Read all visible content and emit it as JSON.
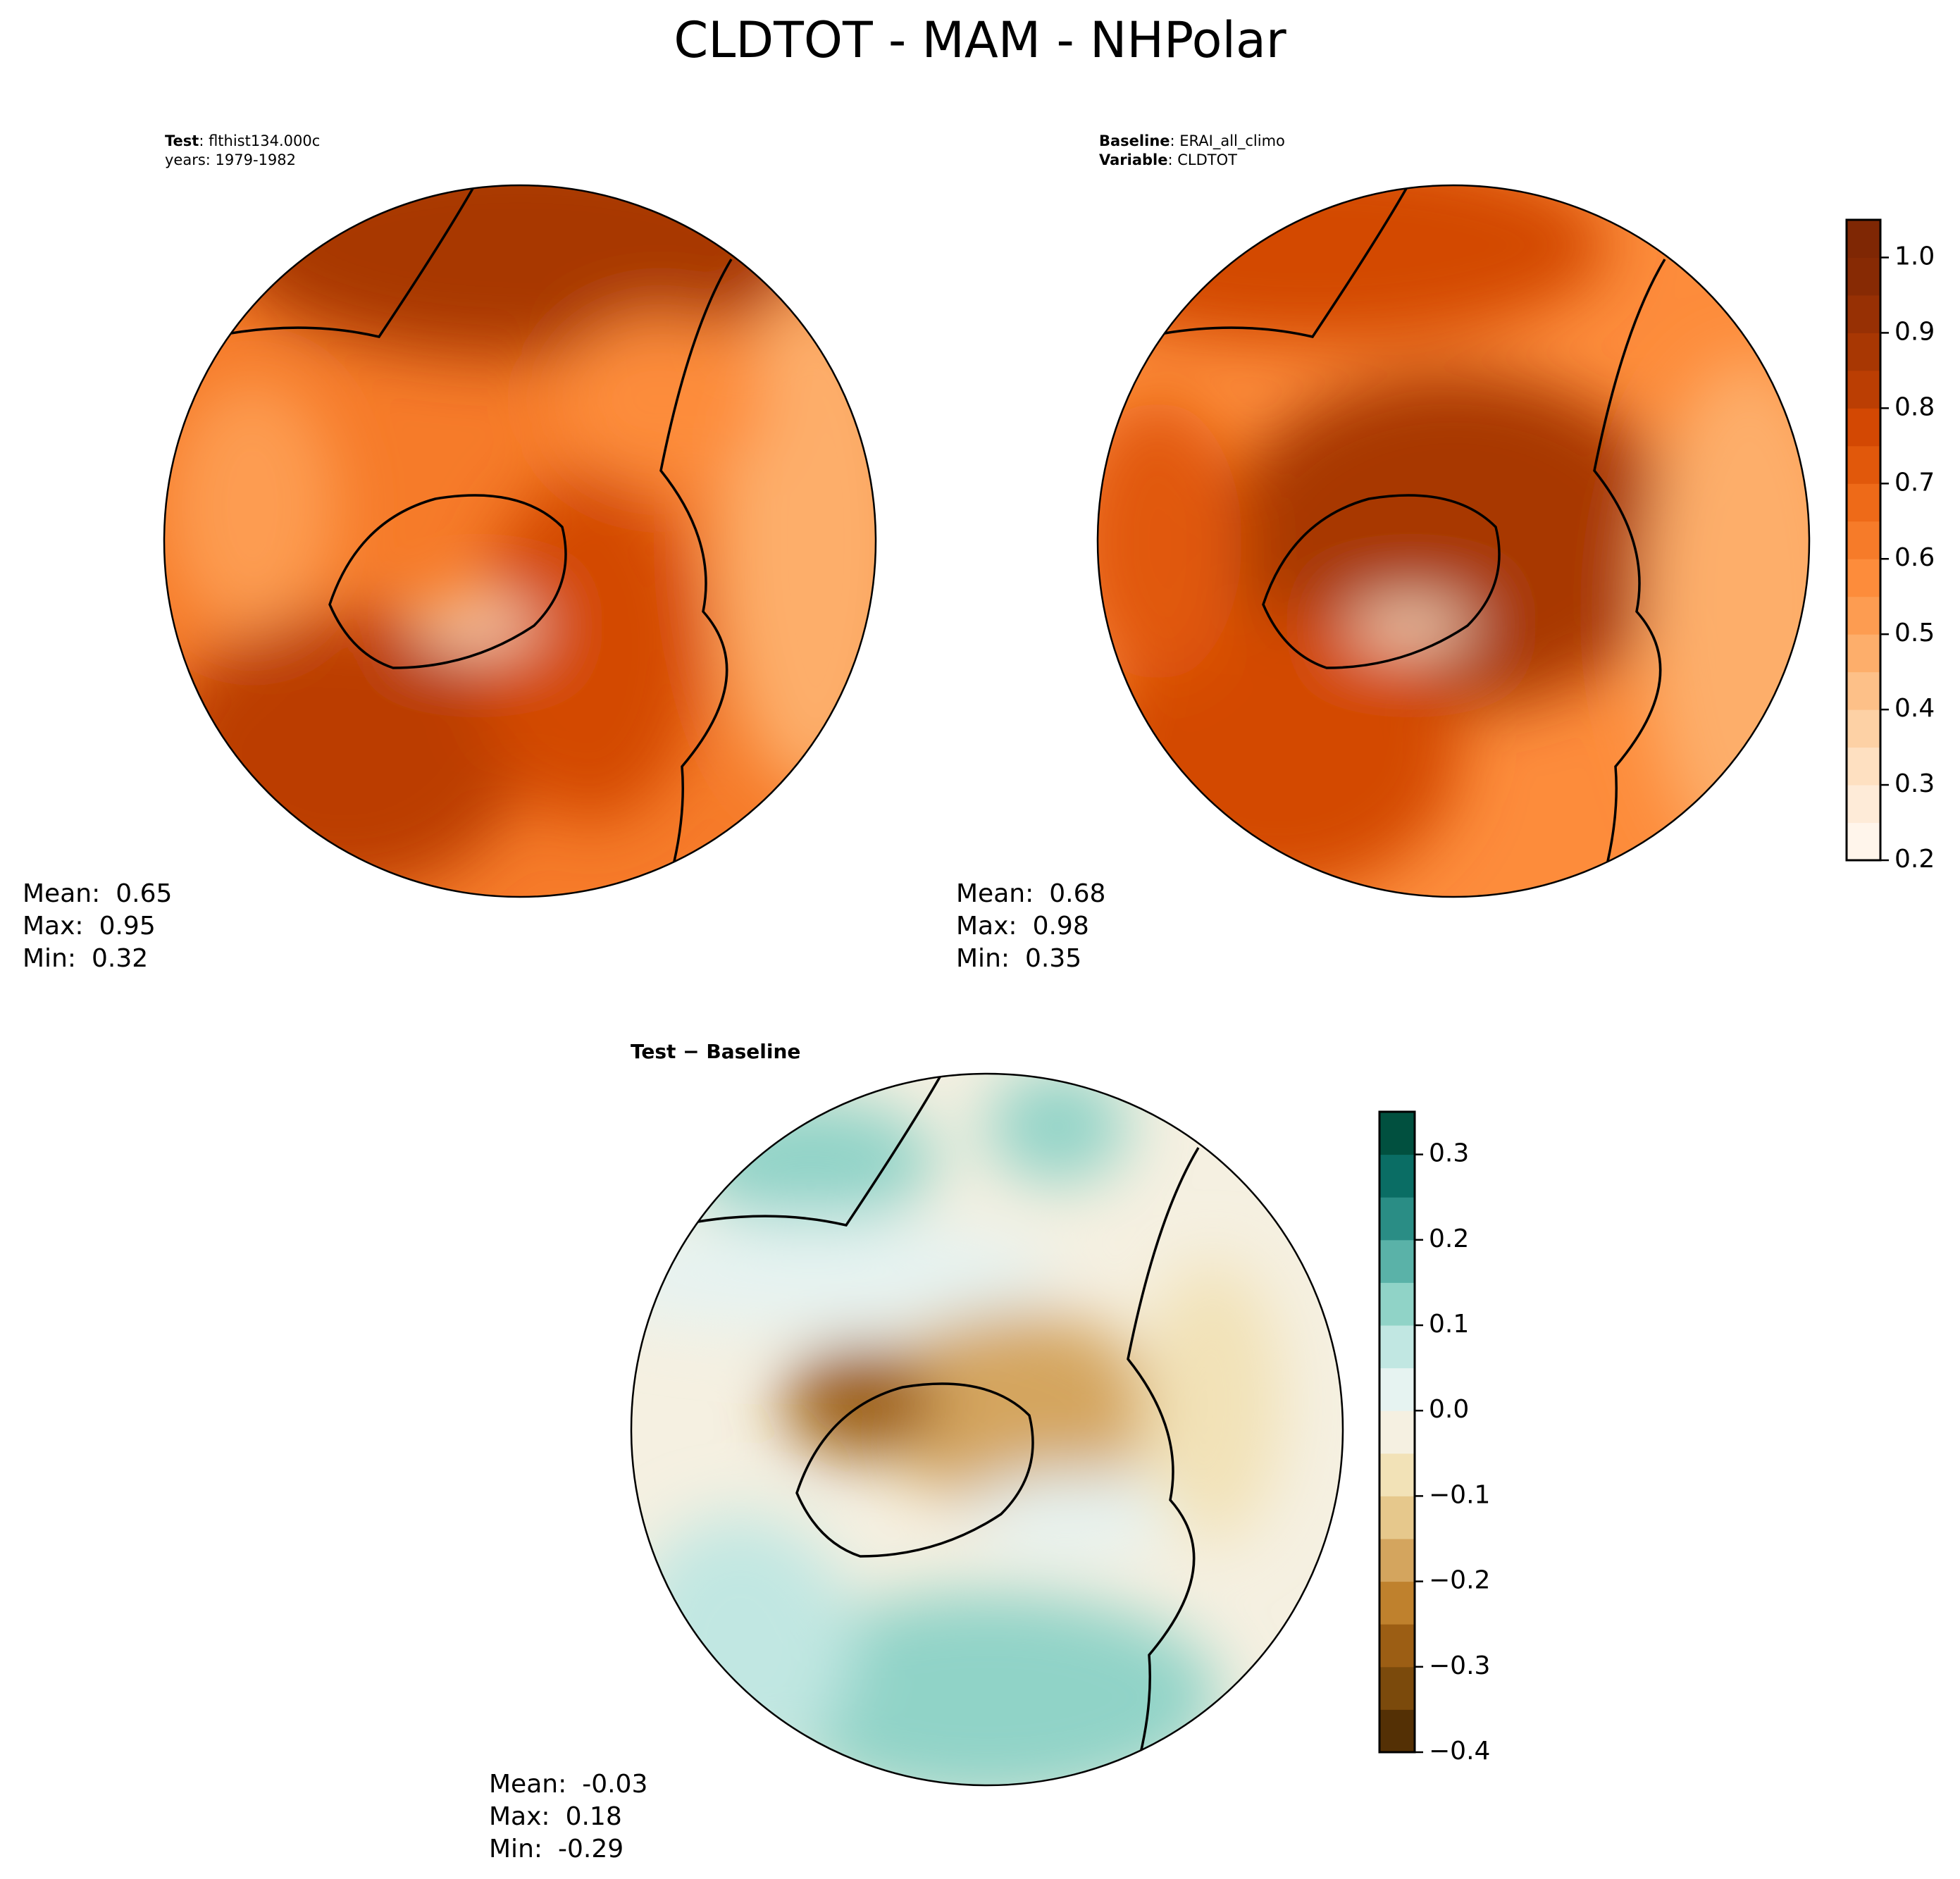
{
  "title": "CLDTOT - MAM - NHPolar",
  "panels": [
    {
      "header": [
        {
          "label": "Test",
          "text": ": flthist134.000c"
        },
        {
          "text": "years: 1979-1982"
        }
      ],
      "stats": [
        {
          "label": "Mean:",
          "value": 0.65
        },
        {
          "label": "Max:",
          "value": 0.95
        },
        {
          "label": "Min:",
          "value": 0.32
        }
      ]
    },
    {
      "header": [
        {
          "label": "Baseline",
          "text": ": ERAI_all_climo"
        },
        {
          "label": "Variable",
          "text": ": CLDTOT"
        }
      ],
      "stats": [
        {
          "label": "Mean:",
          "value": 0.68
        },
        {
          "label": "Max:",
          "value": 0.98
        },
        {
          "label": "Min:",
          "value": 0.35
        }
      ],
      "colorbar": {
        "lim": [
          0.2,
          1.05
        ],
        "ticks": [
          0.2,
          0.3,
          0.4,
          0.5,
          0.6,
          0.7,
          0.8,
          0.9,
          {
            "value": 1,
            "label": "1.0"
          }
        ],
        "colors": [
          "#fff5eb",
          "#feebd8",
          "#fee0c1",
          "#fdd1a5",
          "#fdc088",
          "#fdae6b",
          "#fd9c51",
          "#fd8c3b",
          "#f67b29",
          "#ee6a18",
          "#e1580b",
          "#d34803",
          "#bb3e03",
          "#a83703",
          "#973004",
          "#872a04",
          "#7f2704"
        ]
      }
    },
    {
      "title": "Test − Baseline",
      "stats": [
        {
          "label": "Mean:",
          "value": -0.03
        },
        {
          "label": "Max:",
          "value": 0.18
        },
        {
          "label": "Min:",
          "value": -0.29
        }
      ],
      "colorbar": {
        "lim": [
          -0.4,
          0.35
        ],
        "ticks": [
          {
            "value": -0.4,
            "label": "−0.4"
          },
          {
            "value": -0.3,
            "label": "−0.3"
          },
          {
            "value": -0.2,
            "label": "−0.2"
          },
          {
            "value": -0.1,
            "label": "−0.1"
          },
          {
            "value": 0,
            "label": "0.0"
          },
          0.1,
          0.2,
          0.3
        ],
        "colors": [
          "#543005",
          "#7b4a0c",
          "#9c5e14",
          "#bf812d",
          "#d4a55e",
          "#e6c88c",
          "#f2e2b7",
          "#f5f0e1",
          "#e6f3f1",
          "#c1e7e2",
          "#90d3c7",
          "#5ab2a8",
          "#2a8d85",
          "#0a6d64",
          "#01503f"
        ]
      }
    }
  ]
}
